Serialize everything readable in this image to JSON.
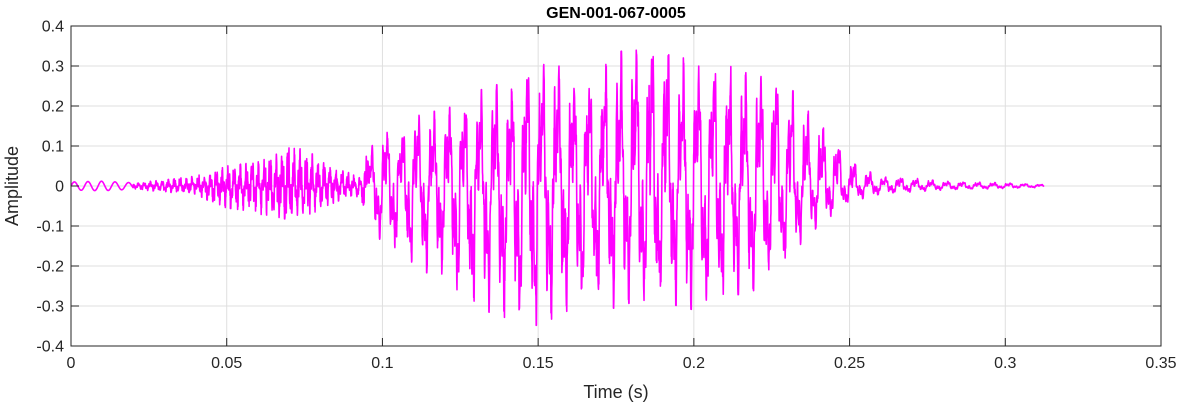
{
  "chart_data": {
    "type": "line",
    "title": "GEN-001-067-0005",
    "xlabel": "Time (s)",
    "ylabel": "Amplitude",
    "xlim": [
      0,
      0.35
    ],
    "ylim": [
      -0.4,
      0.4
    ],
    "grid": true,
    "x_ticks": [
      0,
      0.05,
      0.1,
      0.15,
      0.2,
      0.25,
      0.3,
      0.35
    ],
    "x_tick_labels": [
      "0",
      "0.05",
      "0.1",
      "0.15",
      "0.2",
      "0.25",
      "0.3",
      "0.35"
    ],
    "y_ticks": [
      -0.4,
      -0.3,
      -0.2,
      -0.1,
      0,
      0.1,
      0.2,
      0.3,
      0.4
    ],
    "y_tick_labels": [
      "-0.4",
      "-0.3",
      "-0.2",
      "-0.1",
      "0",
      "0.1",
      "0.2",
      "0.3",
      "0.4"
    ],
    "series": [
      {
        "color": "#ff00ff",
        "duration": 0.3125,
        "envelope_times": [
          0,
          0.01,
          0.02,
          0.03,
          0.04,
          0.045,
          0.05,
          0.055,
          0.06,
          0.065,
          0.07,
          0.075,
          0.08,
          0.085,
          0.09,
          0.093,
          0.095,
          0.1,
          0.105,
          0.11,
          0.115,
          0.12,
          0.125,
          0.13,
          0.135,
          0.14,
          0.145,
          0.15,
          0.155,
          0.16,
          0.165,
          0.17,
          0.175,
          0.18,
          0.185,
          0.19,
          0.195,
          0.2,
          0.205,
          0.21,
          0.215,
          0.22,
          0.225,
          0.23,
          0.235,
          0.24,
          0.245,
          0.25,
          0.255,
          0.26,
          0.27,
          0.28,
          0.29,
          0.3,
          0.31,
          0.3125
        ],
        "envelope_upper": [
          0.01,
          0.012,
          0.008,
          0.015,
          0.025,
          0.035,
          0.05,
          0.055,
          0.06,
          0.075,
          0.1,
          0.09,
          0.07,
          0.05,
          0.03,
          0.02,
          0.08,
          0.14,
          0.12,
          0.18,
          0.18,
          0.2,
          0.19,
          0.23,
          0.26,
          0.24,
          0.3,
          0.3,
          0.31,
          0.28,
          0.26,
          0.29,
          0.33,
          0.35,
          0.37,
          0.36,
          0.33,
          0.3,
          0.3,
          0.31,
          0.28,
          0.29,
          0.28,
          0.26,
          0.2,
          0.17,
          0.12,
          0.07,
          0.04,
          0.025,
          0.02,
          0.012,
          0.01,
          0.008,
          0.005,
          0.003
        ],
        "envelope_lower": [
          -0.01,
          -0.012,
          -0.008,
          -0.015,
          -0.02,
          -0.04,
          -0.055,
          -0.06,
          -0.07,
          -0.075,
          -0.085,
          -0.075,
          -0.06,
          -0.04,
          -0.025,
          -0.03,
          -0.1,
          -0.14,
          -0.16,
          -0.2,
          -0.22,
          -0.22,
          -0.27,
          -0.29,
          -0.32,
          -0.33,
          -0.35,
          -0.35,
          -0.33,
          -0.31,
          -0.3,
          -0.28,
          -0.31,
          -0.29,
          -0.3,
          -0.29,
          -0.3,
          -0.31,
          -0.29,
          -0.28,
          -0.27,
          -0.26,
          -0.22,
          -0.18,
          -0.14,
          -0.1,
          -0.07,
          -0.04,
          -0.03,
          -0.02,
          -0.015,
          -0.01,
          -0.008,
          -0.006,
          -0.004,
          -0.002
        ]
      }
    ]
  }
}
